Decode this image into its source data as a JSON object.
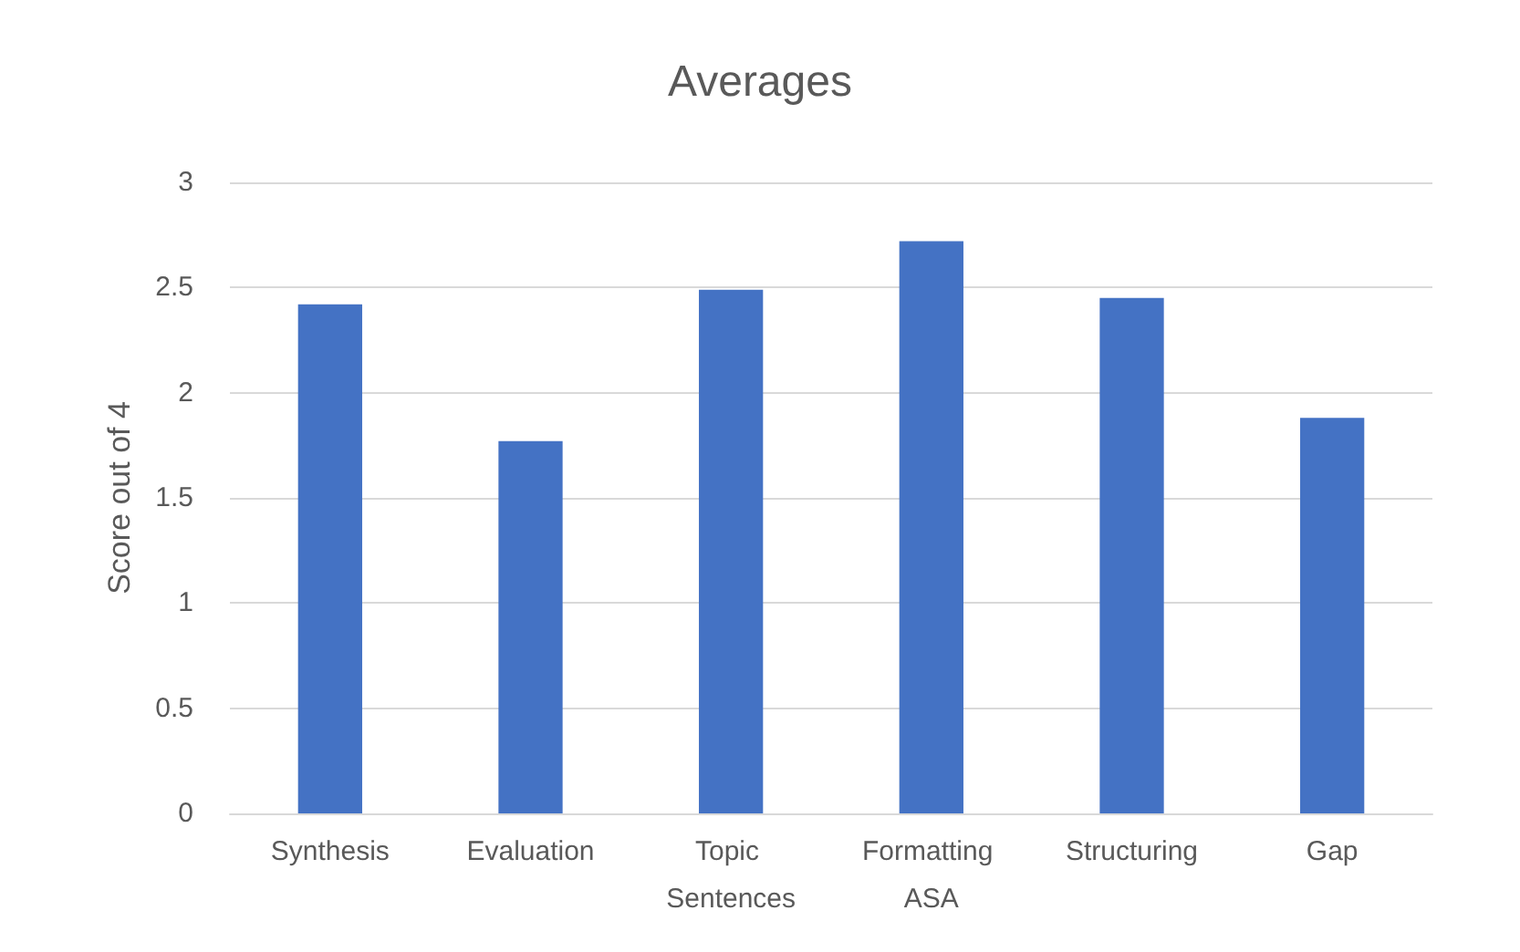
{
  "chart_data": {
    "type": "bar",
    "title": "Averages",
    "ylabel": "Score out of 4",
    "categories": [
      "Synthesis",
      "Evaluation",
      "Topic Sentences",
      "Formatting ASA",
      "Structuring",
      "Gap"
    ],
    "values": [
      2.42,
      1.77,
      2.49,
      2.72,
      2.45,
      1.88
    ],
    "color": "#4472c4",
    "ylim": [
      0,
      3
    ],
    "yticks": [
      0,
      0.5,
      1,
      1.5,
      2,
      2.5,
      3
    ],
    "grid": "y"
  }
}
